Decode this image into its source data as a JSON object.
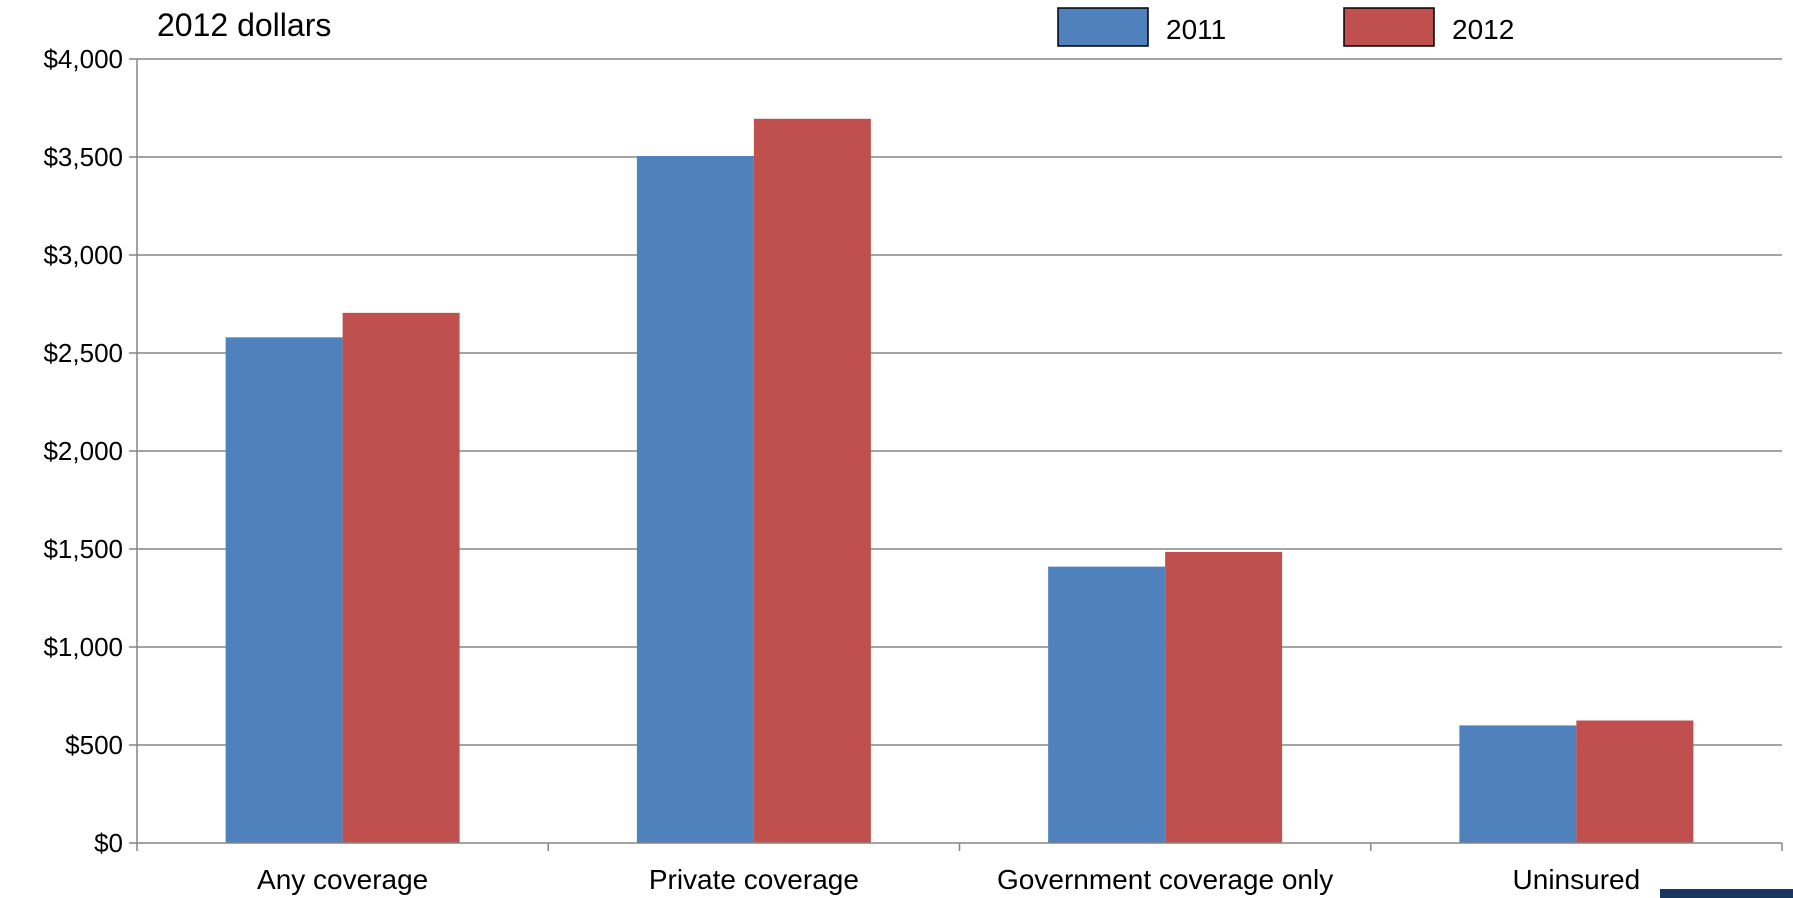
{
  "chart_data": {
    "type": "bar",
    "units_label": "2012 dollars",
    "categories": [
      "Any coverage",
      "Private coverage",
      "Government coverage only",
      "Uninsured"
    ],
    "series": [
      {
        "name": "2011",
        "color": "#4F81BD",
        "values": [
          2580,
          3505,
          1410,
          600
        ]
      },
      {
        "name": "2012",
        "color": "#C0504D",
        "values": [
          2705,
          3695,
          1485,
          625
        ]
      }
    ],
    "ylim": [
      0,
      4000
    ],
    "yticks": [
      0,
      500,
      1000,
      1500,
      2000,
      2500,
      3000,
      3500,
      4000
    ],
    "ytick_labels": [
      "$0",
      "$500",
      "$1,000",
      "$1,500",
      "$2,000",
      "$2,500",
      "$3,000",
      "$3,500",
      "$4,000"
    ],
    "grid": true,
    "legend_position": "top-right",
    "accent_color": "#17375E"
  }
}
